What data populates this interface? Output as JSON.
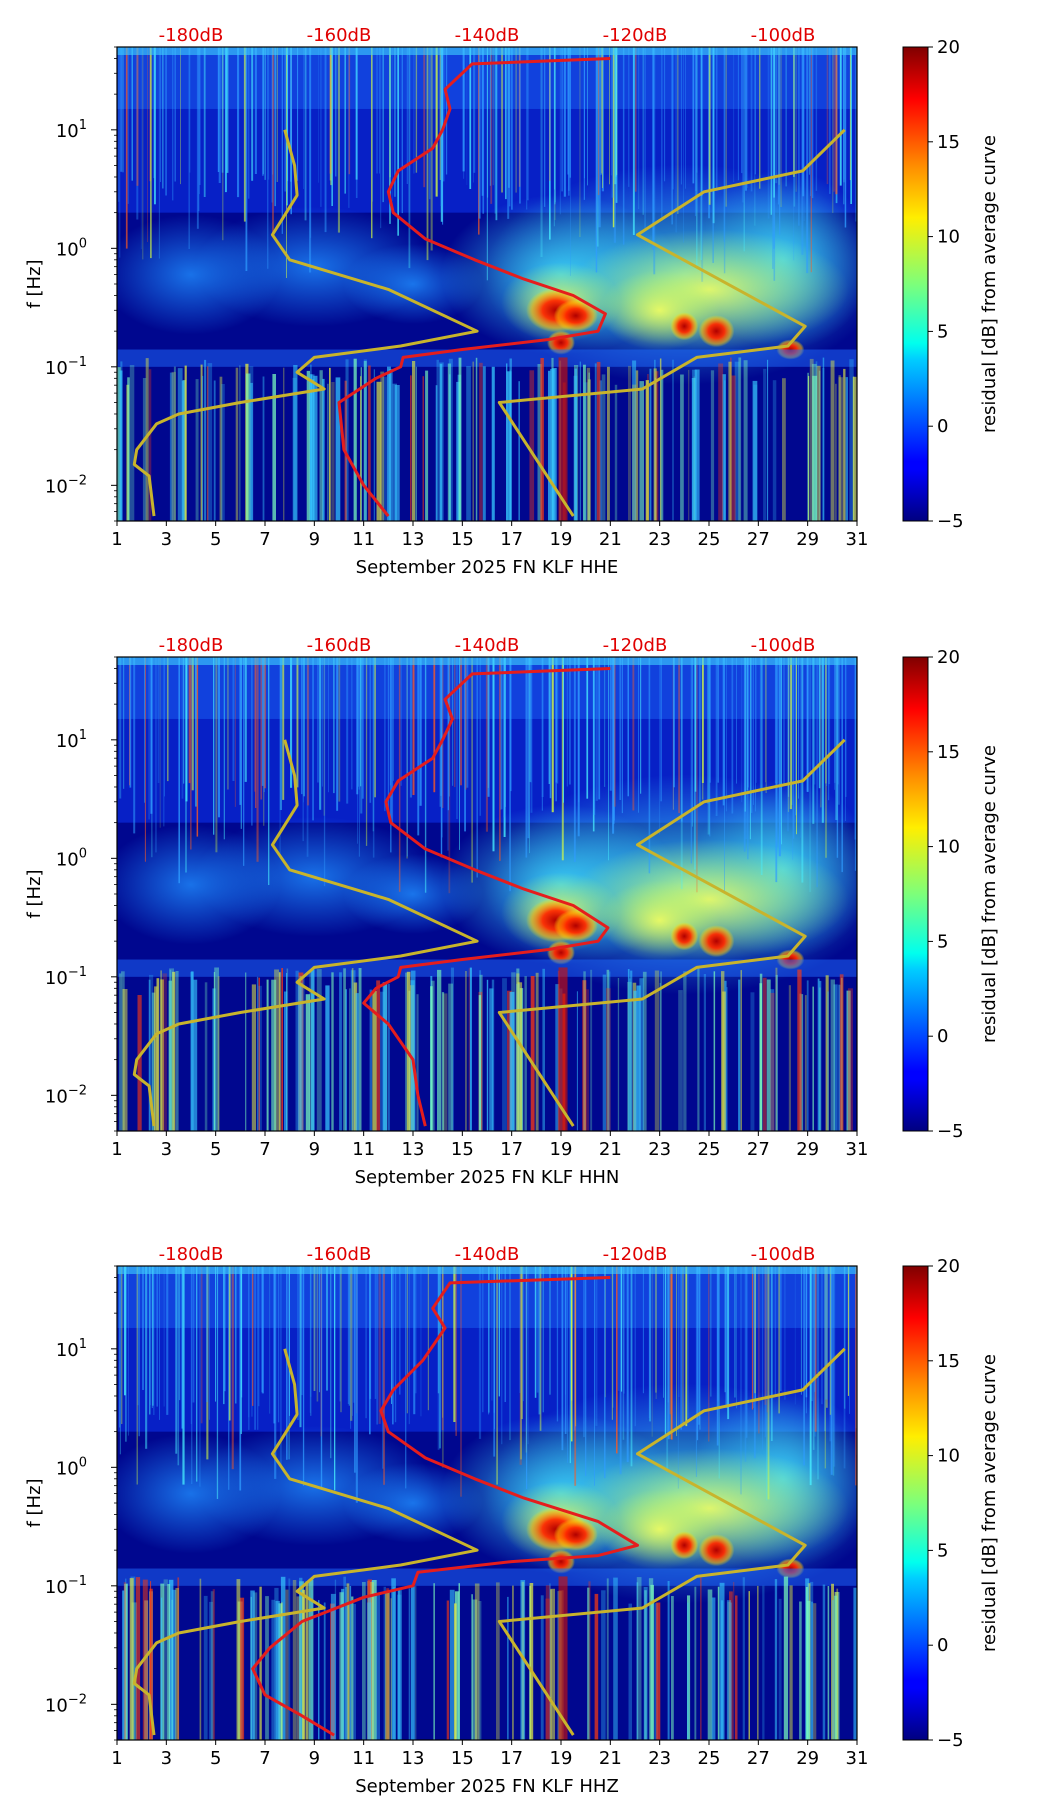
{
  "chart_data": [
    {
      "type": "heatmap",
      "title": "",
      "xlabel": "September 2025 FN KLF  HHE",
      "ylabel": "f [Hz]",
      "x_ticks": [
        "1",
        "3",
        "5",
        "7",
        "9",
        "11",
        "13",
        "15",
        "17",
        "19",
        "21",
        "23",
        "25",
        "27",
        "29",
        "31"
      ],
      "xlim": [
        1,
        31
      ],
      "y_scale": "log",
      "ylim": [
        0.005,
        50
      ],
      "y_ticks": [
        {
          "value": 0.01,
          "base": "10",
          "exp": "−2"
        },
        {
          "value": 0.1,
          "base": "10",
          "exp": "−1"
        },
        {
          "value": 1,
          "base": "10",
          "exp": "0"
        },
        {
          "value": 10,
          "base": "10",
          "exp": "1"
        }
      ],
      "top_ticks": [
        {
          "label": "-180dB",
          "day": 4
        },
        {
          "label": "-160dB",
          "day": 10
        },
        {
          "label": "-140dB",
          "day": 16
        },
        {
          "label": "-120dB",
          "day": 22
        },
        {
          "label": "-100dB",
          "day": 28
        }
      ],
      "colorbar": {
        "label": "residual [dB] from average curve",
        "min": -5,
        "max": 20,
        "ticks": [
          -5,
          0,
          5,
          10,
          15,
          20
        ],
        "colormap": "jet"
      },
      "series": [
        {
          "color": "#e51d1d",
          "points": [
            [
              21,
              40
            ],
            [
              15.4,
              36
            ],
            [
              14.3,
              22
            ],
            [
              14.5,
              15
            ],
            [
              14.2,
              10
            ],
            [
              13.8,
              7
            ],
            [
              12.4,
              4.5
            ],
            [
              12,
              3
            ],
            [
              12.2,
              2
            ],
            [
              13.5,
              1.2
            ],
            [
              15.5,
              0.8
            ],
            [
              17.5,
              0.55
            ],
            [
              19.5,
              0.4
            ],
            [
              20.8,
              0.28
            ],
            [
              20.5,
              0.2
            ],
            [
              18.5,
              0.17
            ],
            [
              15,
              0.14
            ],
            [
              12.6,
              0.12
            ],
            [
              12.5,
              0.1
            ],
            [
              11.5,
              0.08
            ],
            [
              10,
              0.05
            ],
            [
              10.2,
              0.02
            ],
            [
              11,
              0.01
            ],
            [
              12,
              0.0055
            ]
          ]
        },
        {
          "color": "#c8b42c",
          "points": [
            [
              7.8,
              10
            ],
            [
              8.2,
              5
            ],
            [
              8.3,
              2.8
            ],
            [
              7.3,
              1.3
            ],
            [
              8,
              0.8
            ],
            [
              12,
              0.45
            ],
            [
              15.6,
              0.2
            ],
            [
              12.5,
              0.15
            ],
            [
              9,
              0.12
            ],
            [
              8.3,
              0.09
            ],
            [
              9.4,
              0.065
            ],
            [
              6,
              0.05
            ],
            [
              3.5,
              0.04
            ],
            [
              2.6,
              0.033
            ],
            [
              1.8,
              0.02
            ],
            [
              1.7,
              0.015
            ],
            [
              2.3,
              0.012
            ],
            [
              2.5,
              0.0055
            ]
          ]
        },
        {
          "color": "#c8b42c",
          "points": [
            [
              30.5,
              10
            ],
            [
              28.8,
              4.5
            ],
            [
              24.8,
              3.0
            ],
            [
              22.1,
              1.3
            ],
            [
              28.9,
              0.22
            ],
            [
              28.2,
              0.15
            ],
            [
              24.5,
              0.12
            ],
            [
              22.3,
              0.065
            ],
            [
              16.5,
              0.05
            ],
            [
              19.5,
              0.0055
            ]
          ]
        }
      ]
    },
    {
      "type": "heatmap",
      "title": "",
      "xlabel": "September 2025 FN KLF  HHN",
      "ylabel": "f [Hz]",
      "x_ticks": [
        "1",
        "3",
        "5",
        "7",
        "9",
        "11",
        "13",
        "15",
        "17",
        "19",
        "21",
        "23",
        "25",
        "27",
        "29",
        "31"
      ],
      "xlim": [
        1,
        31
      ],
      "y_scale": "log",
      "ylim": [
        0.005,
        50
      ],
      "y_ticks": [
        {
          "value": 0.01,
          "base": "10",
          "exp": "−2"
        },
        {
          "value": 0.1,
          "base": "10",
          "exp": "−1"
        },
        {
          "value": 1,
          "base": "10",
          "exp": "0"
        },
        {
          "value": 10,
          "base": "10",
          "exp": "1"
        }
      ],
      "top_ticks": [
        {
          "label": "-180dB",
          "day": 4
        },
        {
          "label": "-160dB",
          "day": 10
        },
        {
          "label": "-140dB",
          "day": 16
        },
        {
          "label": "-120dB",
          "day": 22
        },
        {
          "label": "-100dB",
          "day": 28
        }
      ],
      "colorbar": {
        "label": "residual [dB] from average curve",
        "min": -5,
        "max": 20,
        "ticks": [
          -5,
          0,
          5,
          10,
          15,
          20
        ],
        "colormap": "jet"
      },
      "series": [
        {
          "color": "#e51d1d",
          "points": [
            [
              21,
              40
            ],
            [
              15.4,
              36
            ],
            [
              14.3,
              22
            ],
            [
              14.6,
              15
            ],
            [
              14.2,
              10
            ],
            [
              13.8,
              7
            ],
            [
              12.4,
              4.5
            ],
            [
              11.9,
              3
            ],
            [
              12.1,
              2
            ],
            [
              13.5,
              1.2
            ],
            [
              15.5,
              0.8
            ],
            [
              17.5,
              0.55
            ],
            [
              19.5,
              0.4
            ],
            [
              20.9,
              0.26
            ],
            [
              20.5,
              0.2
            ],
            [
              18.5,
              0.17
            ],
            [
              15,
              0.14
            ],
            [
              12.5,
              0.12
            ],
            [
              12.4,
              0.1
            ],
            [
              11.5,
              0.08
            ],
            [
              11,
              0.06
            ],
            [
              12,
              0.04
            ],
            [
              13,
              0.02
            ],
            [
              13.2,
              0.01
            ],
            [
              13.5,
              0.0055
            ]
          ]
        },
        {
          "color": "#c8b42c",
          "points": [
            [
              7.8,
              10
            ],
            [
              8.2,
              5
            ],
            [
              8.3,
              2.8
            ],
            [
              7.3,
              1.3
            ],
            [
              8,
              0.8
            ],
            [
              12,
              0.45
            ],
            [
              15.6,
              0.2
            ],
            [
              12.5,
              0.15
            ],
            [
              9,
              0.12
            ],
            [
              8.3,
              0.09
            ],
            [
              9.4,
              0.065
            ],
            [
              6,
              0.05
            ],
            [
              3.5,
              0.04
            ],
            [
              2.6,
              0.033
            ],
            [
              1.8,
              0.02
            ],
            [
              1.7,
              0.015
            ],
            [
              2.3,
              0.012
            ],
            [
              2.5,
              0.0055
            ]
          ]
        },
        {
          "color": "#c8b42c",
          "points": [
            [
              30.5,
              10
            ],
            [
              28.8,
              4.5
            ],
            [
              24.8,
              3.0
            ],
            [
              22.1,
              1.3
            ],
            [
              28.9,
              0.22
            ],
            [
              28.2,
              0.15
            ],
            [
              24.5,
              0.12
            ],
            [
              22.3,
              0.065
            ],
            [
              16.5,
              0.05
            ],
            [
              19.5,
              0.0055
            ]
          ]
        }
      ]
    },
    {
      "type": "heatmap",
      "title": "",
      "xlabel": "September 2025 FN KLF  HHZ",
      "ylabel": "f [Hz]",
      "x_ticks": [
        "1",
        "3",
        "5",
        "7",
        "9",
        "11",
        "13",
        "15",
        "17",
        "19",
        "21",
        "23",
        "25",
        "27",
        "29",
        "31"
      ],
      "xlim": [
        1,
        31
      ],
      "y_scale": "log",
      "ylim": [
        0.005,
        50
      ],
      "y_ticks": [
        {
          "value": 0.01,
          "base": "10",
          "exp": "−2"
        },
        {
          "value": 0.1,
          "base": "10",
          "exp": "−1"
        },
        {
          "value": 1,
          "base": "10",
          "exp": "0"
        },
        {
          "value": 10,
          "base": "10",
          "exp": "1"
        }
      ],
      "top_ticks": [
        {
          "label": "-180dB",
          "day": 4
        },
        {
          "label": "-160dB",
          "day": 10
        },
        {
          "label": "-140dB",
          "day": 16
        },
        {
          "label": "-120dB",
          "day": 22
        },
        {
          "label": "-100dB",
          "day": 28
        }
      ],
      "colorbar": {
        "label": "residual [dB] from average curve",
        "min": -5,
        "max": 20,
        "ticks": [
          -5,
          0,
          5,
          10,
          15,
          20
        ],
        "colormap": "jet"
      },
      "series": [
        {
          "color": "#e51d1d",
          "points": [
            [
              21,
              40
            ],
            [
              14.5,
              36
            ],
            [
              13.8,
              22
            ],
            [
              14.3,
              15
            ],
            [
              13.4,
              8
            ],
            [
              12.2,
              4.5
            ],
            [
              11.7,
              3
            ],
            [
              12,
              2
            ],
            [
              13.5,
              1.2
            ],
            [
              15.5,
              0.8
            ],
            [
              17.5,
              0.55
            ],
            [
              20.5,
              0.35
            ],
            [
              22.1,
              0.22
            ],
            [
              20.5,
              0.18
            ],
            [
              17,
              0.16
            ],
            [
              13.2,
              0.13
            ],
            [
              13,
              0.1
            ],
            [
              11,
              0.08
            ],
            [
              8.5,
              0.05
            ],
            [
              7.2,
              0.03
            ],
            [
              6.5,
              0.02
            ],
            [
              7,
              0.012
            ],
            [
              8.5,
              0.008
            ],
            [
              9.8,
              0.0055
            ]
          ]
        },
        {
          "color": "#c8b42c",
          "points": [
            [
              7.8,
              10
            ],
            [
              8.2,
              5
            ],
            [
              8.3,
              2.8
            ],
            [
              7.3,
              1.3
            ],
            [
              8,
              0.8
            ],
            [
              12,
              0.45
            ],
            [
              15.6,
              0.2
            ],
            [
              12.5,
              0.15
            ],
            [
              9,
              0.12
            ],
            [
              8.3,
              0.09
            ],
            [
              9.4,
              0.065
            ],
            [
              6,
              0.05
            ],
            [
              3.5,
              0.04
            ],
            [
              2.6,
              0.033
            ],
            [
              1.8,
              0.02
            ],
            [
              1.7,
              0.015
            ],
            [
              2.3,
              0.012
            ],
            [
              2.5,
              0.0055
            ]
          ]
        },
        {
          "color": "#c8b42c",
          "points": [
            [
              30.5,
              10
            ],
            [
              28.8,
              4.5
            ],
            [
              24.8,
              3.0
            ],
            [
              22.1,
              1.3
            ],
            [
              28.9,
              0.22
            ],
            [
              28.2,
              0.15
            ],
            [
              24.5,
              0.12
            ],
            [
              22.3,
              0.065
            ],
            [
              16.5,
              0.05
            ],
            [
              19.5,
              0.0055
            ]
          ]
        }
      ]
    }
  ]
}
